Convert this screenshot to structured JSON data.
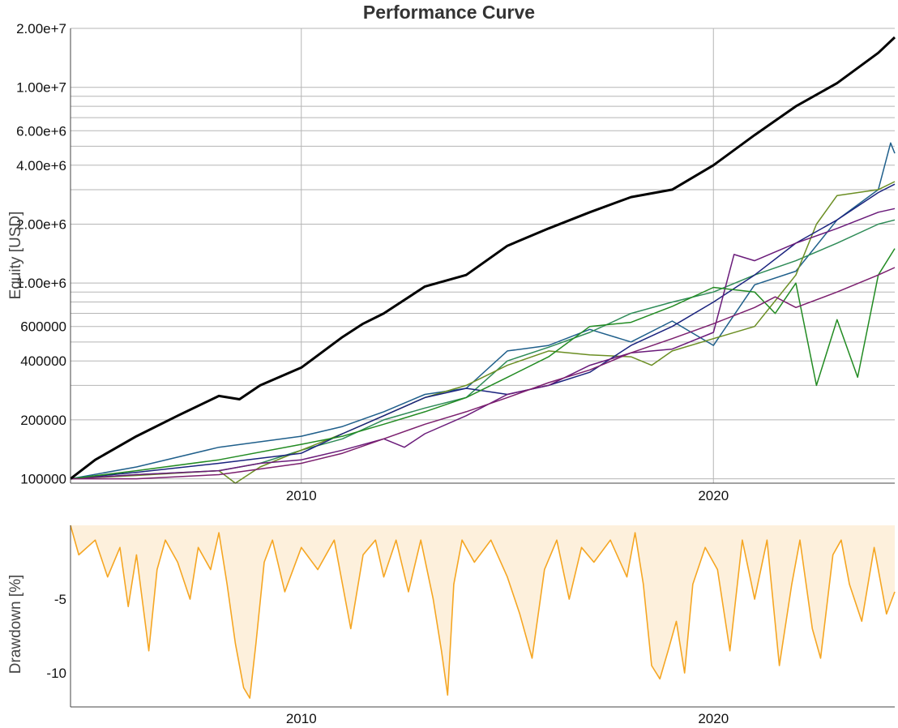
{
  "chart_data": [
    {
      "type": "line",
      "title": "Performance Curve",
      "xlabel": "",
      "ylabel": "Equity [USD]",
      "y_scale": "log",
      "xlim": [
        2004.4,
        2024.4
      ],
      "ylim": [
        95000,
        20000000
      ],
      "grid": true,
      "y_ticks": [
        {
          "value": 100000,
          "label": "100000"
        },
        {
          "value": 200000,
          "label": "200000"
        },
        {
          "value": 400000,
          "label": "400000"
        },
        {
          "value": 600000,
          "label": "600000"
        },
        {
          "value": 1000000,
          "label": "1.00e+6"
        },
        {
          "value": 2000000,
          "label": "2.00e+6"
        },
        {
          "value": 4000000,
          "label": "4.00e+6"
        },
        {
          "value": 6000000,
          "label": "6.00e+6"
        },
        {
          "value": 10000000,
          "label": "1.00e+7"
        },
        {
          "value": 20000000,
          "label": "2.00e+7"
        }
      ],
      "x_ticks": [
        {
          "value": 2010,
          "label": "2010"
        },
        {
          "value": 2020,
          "label": "2020"
        }
      ],
      "series": [
        {
          "color": "#000000",
          "width": 3,
          "x": [
            2004.4,
            2005.0,
            2006.0,
            2007.0,
            2008.0,
            2008.5,
            2009.0,
            2010.0,
            2011.0,
            2011.5,
            2012.0,
            2013.0,
            2014.0,
            2015.0,
            2016.0,
            2017.0,
            2018.0,
            2019.0,
            2020.0,
            2021.0,
            2022.0,
            2023.0,
            2024.0,
            2024.4
          ],
          "y": [
            100000,
            125000,
            165000,
            210000,
            265000,
            255000,
            300000,
            370000,
            530000,
            620000,
            700000,
            960000,
            1100000,
            1550000,
            1900000,
            2300000,
            2750000,
            3000000,
            4000000,
            5700000,
            8000000,
            10500000,
            15000000,
            18000000
          ]
        },
        {
          "color": "#1f5f8b",
          "width": 1.5,
          "x": [
            2004.4,
            2006.0,
            2008.0,
            2010.0,
            2011.0,
            2012.0,
            2013.0,
            2014.0,
            2015.0,
            2016.0,
            2017.0,
            2018.0,
            2019.0,
            2020.0,
            2021.0,
            2022.0,
            2023.0,
            2024.0,
            2024.3,
            2024.4
          ],
          "y": [
            100000,
            115000,
            145000,
            165000,
            185000,
            220000,
            270000,
            290000,
            450000,
            480000,
            580000,
            500000,
            640000,
            480000,
            980000,
            1150000,
            2100000,
            3000000,
            5200000,
            4600000
          ]
        },
        {
          "color": "#2e8b57",
          "width": 1.5,
          "x": [
            2004.4,
            2006.0,
            2008.0,
            2009.0,
            2010.0,
            2011.0,
            2012.0,
            2013.0,
            2014.0,
            2015.0,
            2016.0,
            2017.0,
            2018.0,
            2019.0,
            2020.0,
            2021.0,
            2022.0,
            2023.0,
            2024.0,
            2024.4
          ],
          "y": [
            100000,
            105000,
            110000,
            120000,
            140000,
            160000,
            200000,
            230000,
            260000,
            400000,
            470000,
            560000,
            700000,
            800000,
            900000,
            1100000,
            1300000,
            1600000,
            2000000,
            2100000
          ]
        },
        {
          "color": "#6b8e23",
          "width": 1.5,
          "x": [
            2004.4,
            2006.0,
            2008.0,
            2008.4,
            2009.0,
            2010.0,
            2011.0,
            2012.0,
            2013.0,
            2014.0,
            2015.0,
            2016.0,
            2017.0,
            2018.0,
            2018.5,
            2019.0,
            2020.0,
            2021.0,
            2022.0,
            2022.5,
            2023.0,
            2024.0,
            2024.4
          ],
          "y": [
            100000,
            104000,
            110000,
            95000,
            115000,
            140000,
            170000,
            210000,
            260000,
            300000,
            380000,
            450000,
            430000,
            420000,
            380000,
            450000,
            520000,
            600000,
            1100000,
            2000000,
            2800000,
            3000000,
            3300000
          ]
        },
        {
          "color": "#1a237e",
          "width": 1.5,
          "x": [
            2004.4,
            2006.0,
            2008.0,
            2010.0,
            2011.0,
            2012.0,
            2013.0,
            2014.0,
            2015.0,
            2016.0,
            2017.0,
            2018.0,
            2019.0,
            2020.0,
            2021.0,
            2022.0,
            2023.0,
            2024.0,
            2024.4
          ],
          "y": [
            100000,
            108000,
            120000,
            135000,
            170000,
            210000,
            260000,
            290000,
            270000,
            300000,
            350000,
            480000,
            600000,
            800000,
            1100000,
            1600000,
            2100000,
            2900000,
            3200000
          ]
        },
        {
          "color": "#6a1b7a",
          "width": 1.5,
          "x": [
            2004.4,
            2006.0,
            2008.0,
            2009.0,
            2010.0,
            2011.0,
            2012.0,
            2012.5,
            2013.0,
            2014.0,
            2015.0,
            2016.0,
            2017.0,
            2018.0,
            2019.0,
            2020.0,
            2020.5,
            2021.0,
            2022.0,
            2023.0,
            2024.0,
            2024.4
          ],
          "y": [
            100000,
            105000,
            110000,
            120000,
            125000,
            140000,
            160000,
            145000,
            170000,
            210000,
            270000,
            300000,
            380000,
            440000,
            460000,
            560000,
            1400000,
            1300000,
            1600000,
            1900000,
            2300000,
            2400000
          ]
        },
        {
          "color": "#228b22",
          "width": 1.5,
          "x": [
            2004.4,
            2006.0,
            2008.0,
            2010.0,
            2011.0,
            2012.0,
            2013.0,
            2014.0,
            2015.0,
            2016.0,
            2017.0,
            2018.0,
            2019.0,
            2020.0,
            2021.0,
            2021.5,
            2022.0,
            2022.5,
            2023.0,
            2023.5,
            2024.0,
            2024.4
          ],
          "y": [
            100000,
            110000,
            125000,
            150000,
            165000,
            190000,
            220000,
            260000,
            330000,
            420000,
            600000,
            630000,
            760000,
            950000,
            900000,
            700000,
            1000000,
            300000,
            650000,
            330000,
            1100000,
            1500000
          ]
        },
        {
          "color": "#7b1f6e",
          "width": 1.5,
          "x": [
            2004.4,
            2006.0,
            2008.0,
            2010.0,
            2011.0,
            2012.0,
            2013.0,
            2014.0,
            2015.0,
            2016.0,
            2017.0,
            2018.0,
            2019.0,
            2020.0,
            2021.0,
            2021.5,
            2022.0,
            2023.0,
            2024.0,
            2024.4
          ],
          "y": [
            100000,
            100000,
            105000,
            120000,
            135000,
            160000,
            190000,
            220000,
            260000,
            310000,
            360000,
            440000,
            520000,
            620000,
            750000,
            850000,
            750000,
            900000,
            1100000,
            1200000
          ]
        }
      ]
    },
    {
      "type": "area",
      "title": "",
      "xlabel": "",
      "ylabel": "Drawdown [%]",
      "xlim": [
        2004.4,
        2024.4
      ],
      "ylim": [
        -12.3,
        0
      ],
      "grid": false,
      "color": "#f5a623",
      "fill": "#fdf0dc",
      "y_ticks": [
        {
          "value": -5,
          "label": "-5"
        },
        {
          "value": -10,
          "label": "-10"
        }
      ],
      "x_ticks": [
        {
          "value": 2010,
          "label": "2010"
        },
        {
          "value": 2020,
          "label": "2020"
        }
      ],
      "x": [
        2004.4,
        2004.6,
        2005.0,
        2005.3,
        2005.6,
        2005.8,
        2006.0,
        2006.3,
        2006.5,
        2006.7,
        2007.0,
        2007.3,
        2007.5,
        2007.8,
        2008.0,
        2008.2,
        2008.4,
        2008.6,
        2008.75,
        2008.9,
        2009.1,
        2009.3,
        2009.6,
        2010.0,
        2010.4,
        2010.8,
        2011.2,
        2011.5,
        2011.8,
        2012.0,
        2012.3,
        2012.6,
        2012.9,
        2013.2,
        2013.4,
        2013.55,
        2013.7,
        2013.9,
        2014.2,
        2014.6,
        2015.0,
        2015.3,
        2015.6,
        2015.9,
        2016.2,
        2016.5,
        2016.8,
        2017.1,
        2017.5,
        2017.9,
        2018.1,
        2018.3,
        2018.5,
        2018.7,
        2018.9,
        2019.1,
        2019.3,
        2019.5,
        2019.8,
        2020.1,
        2020.4,
        2020.7,
        2021.0,
        2021.3,
        2021.6,
        2021.9,
        2022.1,
        2022.4,
        2022.6,
        2022.9,
        2023.1,
        2023.3,
        2023.6,
        2023.9,
        2024.2,
        2024.4
      ],
      "y": [
        0,
        -2.0,
        -1.0,
        -3.5,
        -1.5,
        -5.5,
        -2.0,
        -8.5,
        -3.0,
        -1.0,
        -2.5,
        -5.0,
        -1.5,
        -3.0,
        -0.5,
        -4.0,
        -8.0,
        -11.0,
        -11.7,
        -8.0,
        -2.5,
        -1.0,
        -4.5,
        -1.5,
        -3.0,
        -1.0,
        -7.0,
        -2.0,
        -1.0,
        -3.5,
        -1.0,
        -4.5,
        -1.0,
        -5.0,
        -8.5,
        -11.5,
        -4.0,
        -1.0,
        -2.5,
        -1.0,
        -3.5,
        -6.0,
        -9.0,
        -3.0,
        -1.0,
        -5.0,
        -1.5,
        -2.5,
        -1.0,
        -3.5,
        -0.5,
        -4.0,
        -9.5,
        -10.4,
        -8.5,
        -6.5,
        -10.0,
        -4.0,
        -1.5,
        -3.0,
        -8.5,
        -1.0,
        -5.0,
        -1.0,
        -9.5,
        -4.0,
        -1.0,
        -7.0,
        -9.0,
        -2.0,
        -1.0,
        -4.0,
        -6.5,
        -1.5,
        -6.0,
        -4.5
      ]
    }
  ]
}
